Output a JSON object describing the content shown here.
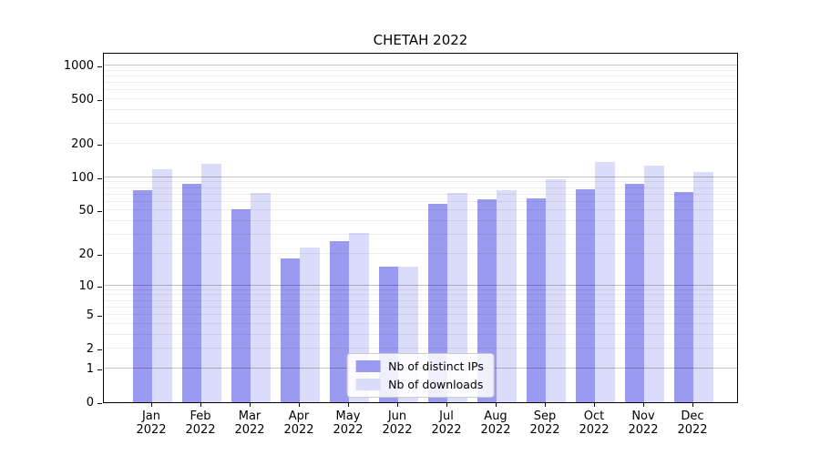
{
  "title": "CHETAH 2022",
  "chart_data": {
    "type": "bar",
    "title": "CHETAH 2022",
    "categories": [
      "Jan 2022",
      "Feb 2022",
      "Mar 2022",
      "Apr 2022",
      "May 2022",
      "Jun 2022",
      "Jul 2022",
      "Aug 2022",
      "Sep 2022",
      "Oct 2022",
      "Nov 2022",
      "Dec 2022"
    ],
    "series": [
      {
        "name": "Nb of distinct IPs",
        "color": "#9a9af0",
        "values": [
          77,
          88,
          51,
          18,
          26,
          15,
          58,
          63,
          64,
          78,
          88,
          73
        ]
      },
      {
        "name": "Nb of downloads",
        "color": "#dbdbfa",
        "values": [
          117,
          132,
          72,
          23,
          31,
          15,
          72,
          77,
          96,
          137,
          126,
          111
        ]
      }
    ],
    "xlabel": "",
    "ylabel": "",
    "yscale": "log1p",
    "yticks": [
      0,
      1,
      2,
      5,
      10,
      20,
      50,
      100,
      200,
      500,
      1000
    ],
    "ylim": [
      0,
      1320
    ],
    "grid": true,
    "legend_position": "lower center",
    "colors": {
      "grid_major": "#c3c3c3",
      "grid_minor": "#ededed",
      "spine": "#000000"
    }
  }
}
